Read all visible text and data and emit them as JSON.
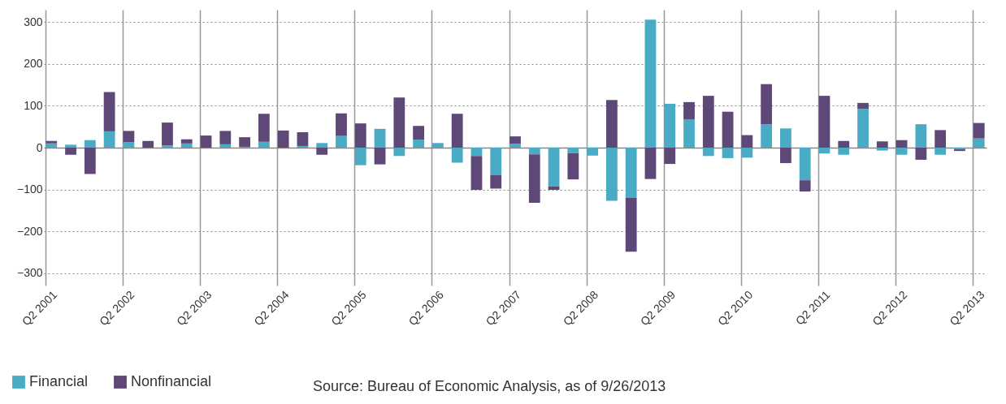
{
  "chart_data": {
    "type": "bar",
    "stacked": true,
    "categories": [
      "Q2 2001",
      null,
      null,
      null,
      "Q2 2002",
      null,
      null,
      null,
      "Q2 2003",
      null,
      null,
      null,
      "Q2 2004",
      null,
      null,
      null,
      "Q2 2005",
      null,
      null,
      null,
      "Q2 2006",
      null,
      null,
      null,
      "Q2 2007",
      null,
      null,
      null,
      "Q2 2008",
      null,
      null,
      null,
      "Q2 2009",
      null,
      null,
      null,
      "Q2 2010",
      null,
      null,
      null,
      "Q2 2011",
      null,
      null,
      null,
      "Q2 2012",
      null,
      null,
      null,
      "Q2 2013"
    ],
    "series": [
      {
        "name": "Financial",
        "color": "#4aabc4",
        "values": [
          10,
          7,
          18,
          39,
          13,
          0,
          5,
          10,
          0,
          8,
          2,
          14,
          0,
          4,
          11,
          28,
          -42,
          45,
          -20,
          19,
          11,
          -36,
          -20,
          -66,
          9,
          -16,
          -93,
          -13,
          -19,
          -127,
          -120,
          306,
          105,
          68,
          -20,
          -25,
          -24,
          56,
          46,
          -78,
          -14,
          -17,
          93,
          -7,
          -17,
          56,
          -17,
          -4,
          22
        ]
      },
      {
        "name": "Nonfinancial",
        "color": "#5e4878",
        "values": [
          6,
          -17,
          -63,
          94,
          27,
          16,
          55,
          10,
          29,
          32,
          23,
          67,
          41,
          33,
          -17,
          54,
          58,
          -40,
          120,
          33,
          0,
          81,
          -81,
          -32,
          18,
          -116,
          -8,
          -63,
          0,
          114,
          -129,
          -75,
          -39,
          41,
          124,
          86,
          30,
          96,
          -37,
          -27,
          124,
          16,
          14,
          15,
          18,
          -29,
          42,
          -4,
          37
        ]
      }
    ],
    "ylim": [
      -330,
      330
    ],
    "yticks": [
      -300,
      -200,
      -100,
      0,
      100,
      200,
      300
    ],
    "grid": true,
    "legend": "bottom left",
    "annotations": [
      "Source: Bureau of Economic Analysis, as of 9/26/2013"
    ]
  }
}
